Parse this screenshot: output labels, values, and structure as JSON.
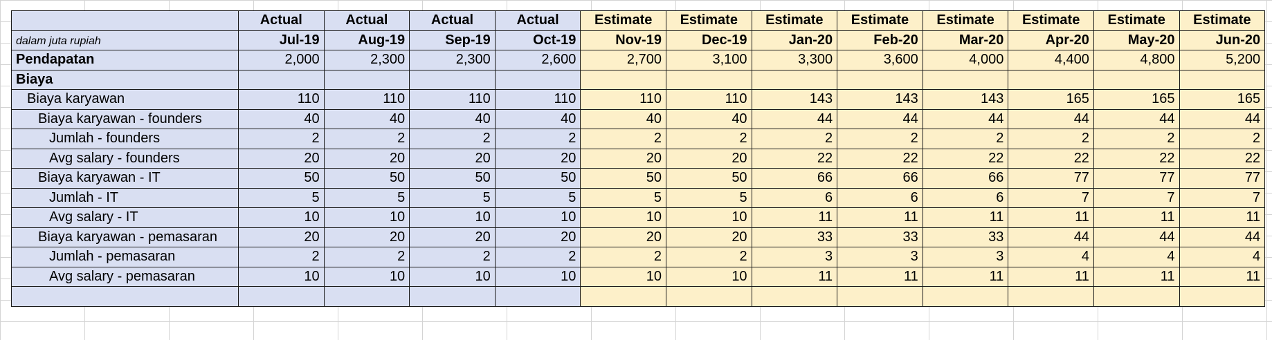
{
  "sheet": {
    "unit_note": "dalam juta rupiah",
    "type_row": [
      "Actual",
      "Actual",
      "Actual",
      "Actual",
      "Estimate",
      "Estimate",
      "Estimate",
      "Estimate",
      "Estimate",
      "Estimate",
      "Estimate",
      "Estimate"
    ],
    "months": [
      "Jul-19",
      "Aug-19",
      "Sep-19",
      "Oct-19",
      "Nov-19",
      "Dec-19",
      "Jan-20",
      "Feb-20",
      "Mar-20",
      "Apr-20",
      "May-20",
      "Jun-20"
    ],
    "actual_fill": "#d9dff2",
    "estimate_fill": "#fdf0c9",
    "rows": [
      {
        "label": "Pendapatan",
        "values": [
          "2,000",
          "2,300",
          "2,300",
          "2,600",
          "2,700",
          "3,100",
          "3,300",
          "3,600",
          "4,000",
          "4,400",
          "4,800",
          "5,200"
        ]
      },
      {
        "label": "Biaya",
        "values": [
          "",
          "",
          "",
          "",
          "",
          "",
          "",
          "",
          "",
          "",
          "",
          ""
        ]
      },
      {
        "label": "Biaya karyawan",
        "values": [
          "110",
          "110",
          "110",
          "110",
          "110",
          "110",
          "143",
          "143",
          "143",
          "165",
          "165",
          "165"
        ]
      },
      {
        "label": "Biaya karyawan - founders",
        "values": [
          "40",
          "40",
          "40",
          "40",
          "40",
          "40",
          "44",
          "44",
          "44",
          "44",
          "44",
          "44"
        ]
      },
      {
        "label": "Jumlah - founders",
        "values": [
          "2",
          "2",
          "2",
          "2",
          "2",
          "2",
          "2",
          "2",
          "2",
          "2",
          "2",
          "2"
        ]
      },
      {
        "label": "Avg salary - founders",
        "values": [
          "20",
          "20",
          "20",
          "20",
          "20",
          "20",
          "22",
          "22",
          "22",
          "22",
          "22",
          "22"
        ]
      },
      {
        "label": "Biaya karyawan - IT",
        "values": [
          "50",
          "50",
          "50",
          "50",
          "50",
          "50",
          "66",
          "66",
          "66",
          "77",
          "77",
          "77"
        ]
      },
      {
        "label": "Jumlah - IT",
        "values": [
          "5",
          "5",
          "5",
          "5",
          "5",
          "5",
          "6",
          "6",
          "6",
          "7",
          "7",
          "7"
        ]
      },
      {
        "label": "Avg salary - IT",
        "values": [
          "10",
          "10",
          "10",
          "10",
          "10",
          "10",
          "11",
          "11",
          "11",
          "11",
          "11",
          "11"
        ]
      },
      {
        "label": "Biaya karyawan - pemasaran",
        "values": [
          "20",
          "20",
          "20",
          "20",
          "20",
          "20",
          "33",
          "33",
          "33",
          "44",
          "44",
          "44"
        ]
      },
      {
        "label": "Jumlah - pemasaran",
        "values": [
          "2",
          "2",
          "2",
          "2",
          "2",
          "2",
          "3",
          "3",
          "3",
          "4",
          "4",
          "4"
        ]
      },
      {
        "label": "Avg salary - pemasaran",
        "values": [
          "10",
          "10",
          "10",
          "10",
          "10",
          "10",
          "11",
          "11",
          "11",
          "11",
          "11",
          "11"
        ]
      },
      {
        "label": "",
        "values": [
          "",
          "",
          "",
          "",
          "",
          "",
          "",
          "",
          "",
          "",
          "",
          ""
        ]
      }
    ]
  }
}
